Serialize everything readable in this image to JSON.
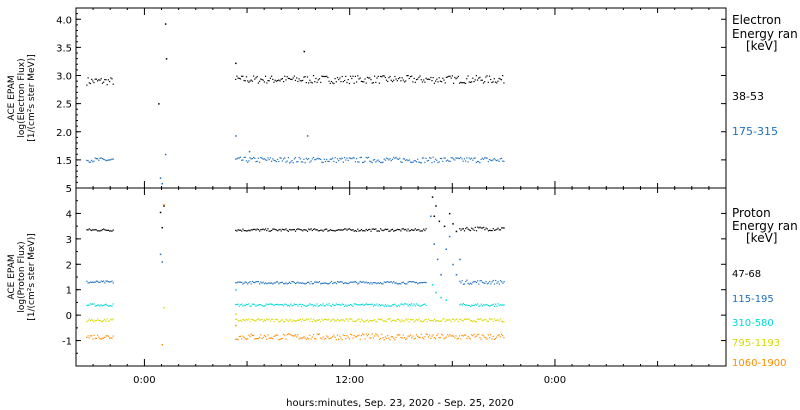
{
  "chart_data": [
    {
      "type": "scatter",
      "panel": "electron",
      "ylabel_lines": [
        "ACE EPAM",
        "log(Electron Flux)",
        "[1/(cm²s ster MeV)]"
      ],
      "ylim": [
        1.0,
        4.2
      ],
      "yticks": [
        1.5,
        2.0,
        2.5,
        3.0,
        3.5,
        4.0
      ],
      "ytick_labels": [
        "1.5",
        "2.0",
        "2.5",
        "3.0",
        "3.5",
        "4.0"
      ],
      "legend_title_lines": [
        "Electron",
        "Energy ran",
        "[keV]"
      ],
      "series": [
        {
          "name": "38-53",
          "color": "#000000",
          "segments": [
            {
              "x": [
                -3.4,
                -1.8
              ],
              "mean": 2.9,
              "noise": 0.07
            },
            {
              "x": [
                5.3,
                21.0
              ],
              "mean": 2.93,
              "noise": 0.07
            }
          ],
          "points": [
            [
              0.8,
              2.5
            ],
            [
              1.2,
              3.92
            ],
            [
              1.25,
              3.3
            ],
            [
              5.3,
              3.22
            ],
            [
              9.3,
              3.43
            ]
          ]
        },
        {
          "name": "175-315",
          "color": "#1f6fbf",
          "segments": [
            {
              "x": [
                -3.4,
                -1.8
              ],
              "mean": 1.5,
              "noise": 0.04
            },
            {
              "x": [
                5.3,
                21.0
              ],
              "mean": 1.5,
              "noise": 0.05
            }
          ],
          "points": [
            [
              0.9,
              1.18
            ],
            [
              1.0,
              1.08
            ],
            [
              1.2,
              1.6
            ],
            [
              5.3,
              1.93
            ],
            [
              9.5,
              1.93
            ],
            [
              6.1,
              1.65
            ]
          ]
        }
      ]
    },
    {
      "type": "scatter",
      "panel": "proton",
      "ylabel_lines": [
        "ACE EPAM",
        "log(Proton Flux)",
        "[1/(cm²s ster MeV)]"
      ],
      "ylim": [
        -2.0,
        5.0
      ],
      "yticks": [
        -1,
        0,
        1,
        2,
        3,
        4,
        5
      ],
      "ytick_labels": [
        "-1",
        "0",
        "1",
        "2",
        "3",
        "4",
        "5"
      ],
      "legend_title_lines": [
        "Proton",
        "Energy ran",
        "[keV]"
      ],
      "series": [
        {
          "name": "47-68",
          "color": "#000000",
          "segments": [
            {
              "x": [
                -3.4,
                -1.8
              ],
              "mean": 3.35,
              "noise": 0.05
            },
            {
              "x": [
                5.3,
                16.5
              ],
              "mean": 3.35,
              "noise": 0.05
            },
            {
              "x": [
                18.4,
                21.0
              ],
              "mean": 3.4,
              "noise": 0.08
            }
          ],
          "points": [
            [
              0.9,
              4.05
            ],
            [
              1.1,
              4.3
            ],
            [
              1.0,
              3.45
            ],
            [
              16.8,
              4.65
            ],
            [
              17.0,
              4.3
            ],
            [
              17.2,
              3.7
            ],
            [
              17.5,
              3.5
            ],
            [
              17.8,
              4.0
            ],
            [
              18.0,
              3.6
            ],
            [
              18.2,
              3.3
            ],
            [
              16.9,
              3.9
            ]
          ]
        },
        {
          "name": "115-195",
          "color": "#1f6fbf",
          "segments": [
            {
              "x": [
                -3.4,
                -1.8
              ],
              "mean": 1.3,
              "noise": 0.05
            },
            {
              "x": [
                5.3,
                16.5
              ],
              "mean": 1.28,
              "noise": 0.05
            },
            {
              "x": [
                18.4,
                21.0
              ],
              "mean": 1.3,
              "noise": 0.08
            }
          ],
          "points": [
            [
              0.9,
              2.4
            ],
            [
              1.0,
              2.1
            ],
            [
              16.7,
              3.9
            ],
            [
              16.9,
              2.8
            ],
            [
              17.1,
              2.2
            ],
            [
              17.3,
              1.6
            ],
            [
              17.6,
              2.6
            ],
            [
              17.8,
              3.1
            ],
            [
              18.0,
              2.0
            ],
            [
              18.2,
              1.6
            ],
            [
              18.4,
              2.2
            ]
          ]
        },
        {
          "name": "310-580",
          "color": "#00d8d8",
          "segments": [
            {
              "x": [
                -3.4,
                -1.8
              ],
              "mean": 0.4,
              "noise": 0.05
            },
            {
              "x": [
                5.3,
                16.5
              ],
              "mean": 0.4,
              "noise": 0.05
            },
            {
              "x": [
                18.4,
                21.0
              ],
              "mean": 0.4,
              "noise": 0.06
            }
          ],
          "points": [
            [
              5.3,
              1.0
            ],
            [
              16.8,
              1.2
            ],
            [
              17.0,
              0.9
            ],
            [
              17.3,
              0.7
            ],
            [
              17.6,
              0.6
            ]
          ]
        },
        {
          "name": "795-1193",
          "color": "#d8d800",
          "segments": [
            {
              "x": [
                -3.4,
                -1.8
              ],
              "mean": -0.2,
              "noise": 0.06
            },
            {
              "x": [
                5.3,
                21.0
              ],
              "mean": -0.2,
              "noise": 0.06
            }
          ],
          "points": [
            [
              1.1,
              0.3
            ],
            [
              5.3,
              0.05
            ]
          ]
        },
        {
          "name": "1060-1900",
          "color": "#ff8c00",
          "segments": [
            {
              "x": [
                -3.4,
                -1.8
              ],
              "mean": -0.85,
              "noise": 0.1
            },
            {
              "x": [
                5.3,
                21.0
              ],
              "mean": -0.85,
              "noise": 0.12
            }
          ],
          "points": [
            [
              1.0,
              -1.15
            ],
            [
              1.1,
              4.35
            ],
            [
              5.3,
              -0.4
            ]
          ]
        }
      ]
    }
  ],
  "x_axis": {
    "xlim": [
      -4.0,
      34.0
    ],
    "ticks": [
      0,
      12,
      24
    ],
    "tick_labels": [
      "0:00",
      "12:00",
      "0:00"
    ],
    "xlabel": "hours:minutes, Sep. 23, 2020 - Sep. 25, 2020"
  }
}
